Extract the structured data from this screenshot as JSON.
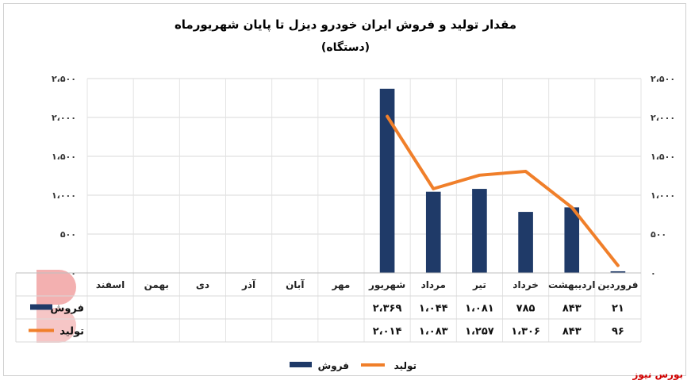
{
  "chart_data": {
    "type": "bar",
    "title": "مقدار تولید و فروش ایران خودرو دیزل تا پایان شهریورماه",
    "subtitle": "(دستگاه)",
    "categories": [
      "فروردین",
      "اردیبهشت",
      "خرداد",
      "تیر",
      "مرداد",
      "شهریور",
      "مهر",
      "آبان",
      "آذر",
      "دی",
      "بهمن",
      "اسفند"
    ],
    "series": [
      {
        "name": "فروش",
        "type": "bar",
        "color": "#1f3a68",
        "values": [
          21,
          843,
          785,
          1081,
          1044,
          2369,
          null,
          null,
          null,
          null,
          null,
          null
        ],
        "labels": [
          "۲۱",
          "۸۴۳",
          "۷۸۵",
          "۱،۰۸۱",
          "۱،۰۴۴",
          "۲،۳۶۹",
          "",
          "",
          "",
          "",
          "",
          ""
        ]
      },
      {
        "name": "تولید",
        "type": "line",
        "color": "#f07f2a",
        "values": [
          96,
          843,
          1306,
          1257,
          1083,
          2014,
          null,
          null,
          null,
          null,
          null,
          null
        ],
        "labels": [
          "۹۶",
          "۸۴۳",
          "۱،۳۰۶",
          "۱،۲۵۷",
          "۱،۰۸۳",
          "۲،۰۱۴",
          "",
          "",
          "",
          "",
          "",
          ""
        ]
      }
    ],
    "ylim": [
      0,
      2500
    ],
    "yticks": [
      0,
      500,
      1000,
      1500,
      2000,
      2500
    ],
    "ytick_labels": [
      "۰",
      "۵۰۰",
      "۱،۰۰۰",
      "۱،۵۰۰",
      "۲،۰۰۰",
      "۲،۵۰۰"
    ],
    "grid": true,
    "legend": "bottom"
  },
  "source": "بورس نیوز"
}
